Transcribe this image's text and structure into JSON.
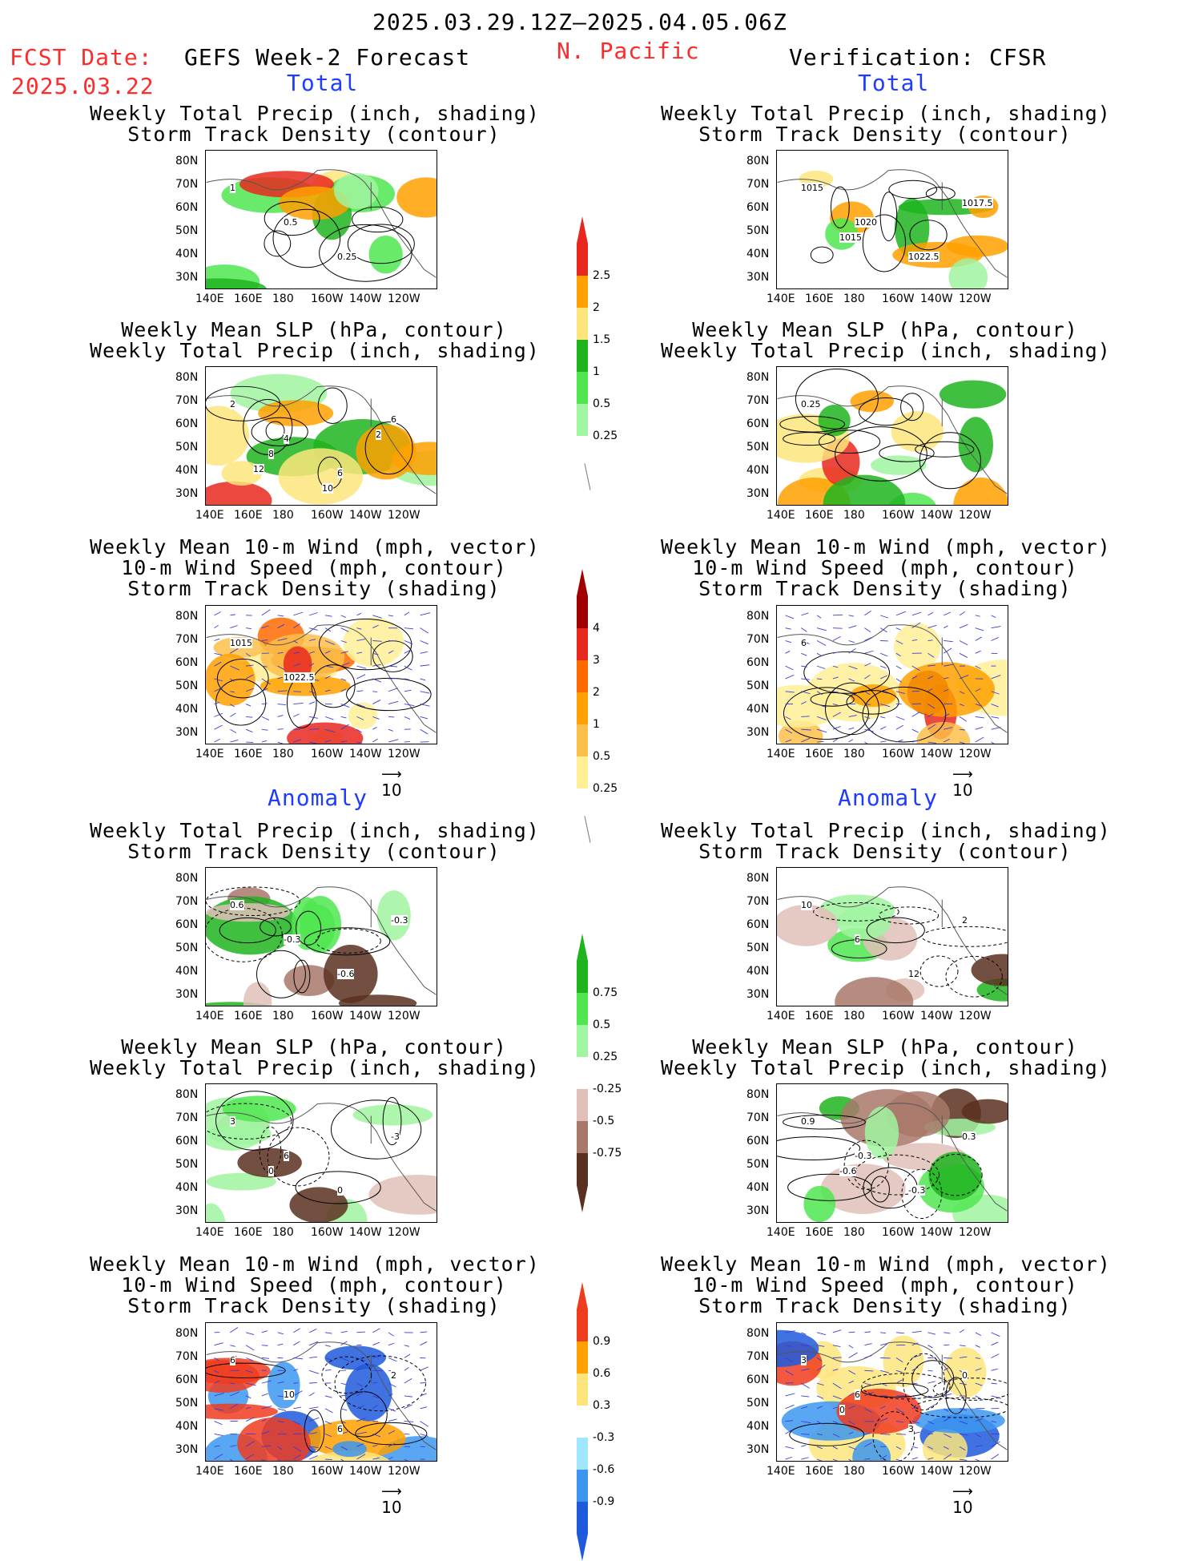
{
  "header": {
    "date_range": "2025.03.29.12Z–2025.04.05.06Z",
    "fcst_label": "FCST Date:",
    "fcst_date": "2025.03.22",
    "left_title": "GEFS Week-2 Forecast",
    "region": "N. Pacific",
    "right_title": "Verification: CFSR"
  },
  "sections": {
    "total": "Total",
    "anomaly": "Anomaly"
  },
  "panel_titles": {
    "precip_storm": [
      "Weekly Total Precip (inch, shading)",
      "Storm Track Density (contour)"
    ],
    "slp_precip": [
      "Weekly Mean SLP (hPa, contour)",
      "Weekly Total Precip (inch, shading)"
    ],
    "wind_storm": [
      "Weekly Mean 10-m Wind (mph, vector)",
      "10-m Wind Speed (mph, contour)",
      "Storm Track Density (shading)"
    ]
  },
  "axes": {
    "lat_ticks": [
      "80N",
      "70N",
      "60N",
      "50N",
      "40N",
      "30N"
    ],
    "lon_ticks": [
      "140E",
      "160E",
      "180",
      "160W",
      "140W",
      "120W"
    ]
  },
  "vector_ref": "10",
  "colorbars": {
    "precip_total": {
      "labels": [
        "2.5",
        "2",
        "1.5",
        "1",
        "0.5",
        "0.25"
      ],
      "colors": [
        "#e8281e",
        "#ffa000",
        "#fde57c",
        "#1eb41e",
        "#50e650",
        "#a0f5a0"
      ]
    },
    "storm_total": {
      "labels": [
        "4",
        "3",
        "2",
        "1",
        "0.5",
        "0.25"
      ],
      "colors": [
        "#a00000",
        "#e6281e",
        "#ff6a00",
        "#ffa000",
        "#fbc04a",
        "#fff096"
      ]
    },
    "precip_anom": {
      "labels": [
        "0.75",
        "0.5",
        "0.25",
        "-0.25",
        "-0.5",
        "-0.75"
      ],
      "colors": [
        "#1eb41e",
        "#50e650",
        "#a0f5a0",
        "#ffffff",
        "#e0c0b8",
        "#a87868",
        "#5a3020"
      ]
    },
    "storm_anom": {
      "labels": [
        "0.9",
        "0.6",
        "0.3",
        "-0.3",
        "-0.6",
        "-0.9"
      ],
      "colors": [
        "#f03c1e",
        "#ffa000",
        "#fde57c",
        "#ffffff",
        "#a0e6ff",
        "#3c96f0",
        "#1e5adc"
      ]
    }
  },
  "contour_labels": {
    "p1": [
      "1",
      "0.5",
      "0.25"
    ],
    "p2": [
      "1015",
      "1020",
      "1022.5",
      "1017.5",
      "1015"
    ],
    "p3": [
      "2",
      "4",
      "6",
      "6",
      "8",
      "10",
      "2",
      "12"
    ],
    "p4": [
      "0.25"
    ],
    "p5": [
      "1015",
      "1022.5"
    ],
    "p6": [
      "6"
    ],
    "p7": [
      "0.6",
      "-0.3",
      "-0.6",
      "-0.3"
    ],
    "p8": [
      "10",
      "6",
      "12",
      "2"
    ],
    "p9": [
      "3",
      "6",
      "0",
      "-3",
      "0"
    ],
    "p10": [
      "0.9",
      "-0.3",
      "-0.3",
      "0.3",
      "-0.6"
    ],
    "p11": [
      "6",
      "10",
      "6",
      "2"
    ],
    "p12": [
      "3",
      "6",
      "3",
      "0",
      "0"
    ]
  }
}
